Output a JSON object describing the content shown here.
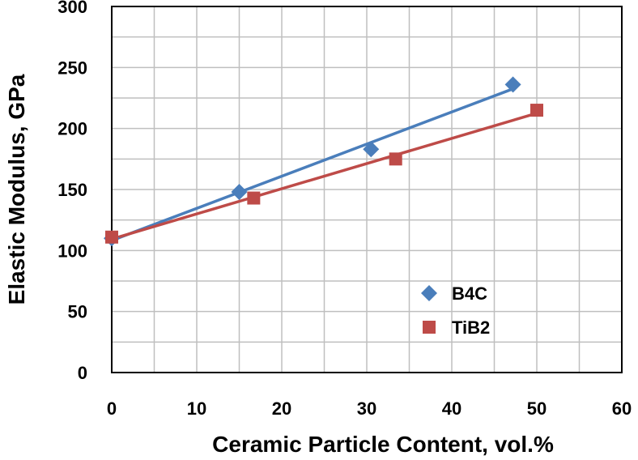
{
  "chart_data": {
    "type": "scatter",
    "title": "",
    "xlabel": "Ceramic Particle Content, vol.%",
    "ylabel": "Elastic Modulus, GPa",
    "xlim": [
      0,
      60
    ],
    "ylim": [
      0,
      300
    ],
    "xticks": [
      0,
      10,
      20,
      30,
      40,
      50,
      60
    ],
    "yticks": [
      0,
      50,
      100,
      150,
      200,
      250,
      300
    ],
    "x_tick_labels": [
      "0",
      "10",
      "20",
      "30",
      "40",
      "50",
      "60"
    ],
    "y_tick_labels": [
      "0",
      "50",
      "100",
      "150",
      "200",
      "250",
      "300"
    ],
    "grid": true,
    "legend_position": "bottom-right",
    "series": [
      {
        "name": "B4C",
        "marker": "diamond",
        "color": "#4a7ebb",
        "trendline": true,
        "points": [
          {
            "x": 0,
            "y": 110
          },
          {
            "x": 15,
            "y": 148
          },
          {
            "x": 30.5,
            "y": 183
          },
          {
            "x": 47.2,
            "y": 236
          }
        ]
      },
      {
        "name": "TiB2",
        "marker": "square",
        "color": "#be4b48",
        "trendline": true,
        "points": [
          {
            "x": 0,
            "y": 111
          },
          {
            "x": 16.7,
            "y": 143
          },
          {
            "x": 33.4,
            "y": 175
          },
          {
            "x": 50,
            "y": 215
          }
        ]
      }
    ]
  }
}
